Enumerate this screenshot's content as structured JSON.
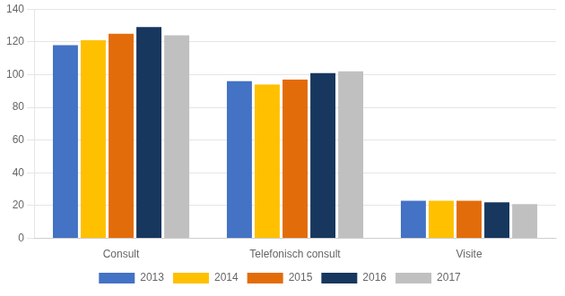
{
  "chart_data": {
    "type": "bar",
    "categories": [
      "Consult",
      "Telefonisch consult",
      "Visite"
    ],
    "series": [
      {
        "name": "2013",
        "color": "#4472C4",
        "values": [
          118,
          96,
          23
        ]
      },
      {
        "name": "2014",
        "color": "#FFC000",
        "values": [
          121,
          94,
          23
        ]
      },
      {
        "name": "2015",
        "color": "#E36C0A",
        "values": [
          125,
          97,
          23
        ]
      },
      {
        "name": "2016",
        "color": "#17375E",
        "values": [
          129,
          101,
          22
        ]
      },
      {
        "name": "2017",
        "color": "#C0C0C0",
        "values": [
          124,
          102,
          21
        ]
      }
    ],
    "ylim": [
      0,
      140
    ],
    "yticks": [
      0,
      20,
      40,
      60,
      80,
      100,
      120,
      140
    ],
    "grid": true,
    "legend": "bottom"
  }
}
